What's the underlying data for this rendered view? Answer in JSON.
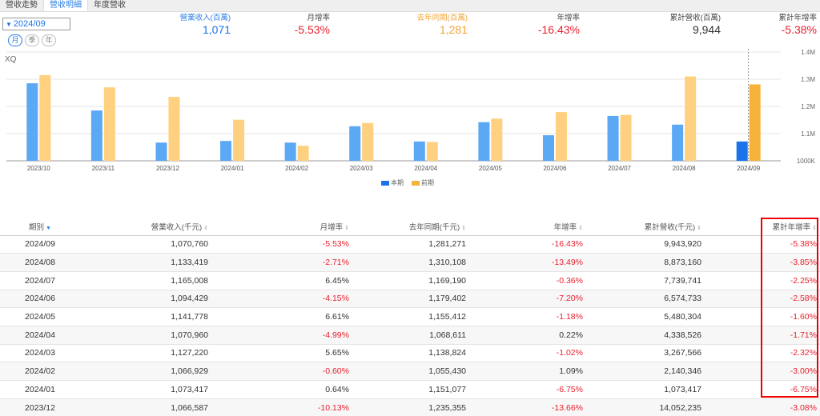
{
  "tabs": [
    {
      "label": "營收走勢"
    },
    {
      "label": "營收明細"
    },
    {
      "label": "年度營收"
    }
  ],
  "period_select": {
    "value": "2024/09"
  },
  "freq_buttons": [
    {
      "label": "月"
    },
    {
      "label": "季"
    },
    {
      "label": "年"
    }
  ],
  "summary": {
    "revenue": {
      "label": "營業收入(百萬)",
      "value": "1,071"
    },
    "mom": {
      "label": "月增率",
      "value": "-5.53%"
    },
    "last_year": {
      "label": "去年同期(百萬)",
      "value": "1,281"
    },
    "yoy": {
      "label": "年增率",
      "value": "-16.43%"
    },
    "cumulative": {
      "label": "累計營收(百萬)",
      "value": "9,944"
    },
    "cum_yoy": {
      "label": "累計年增率",
      "value": "-5.38%"
    }
  },
  "chart_logo": "XQ",
  "colors": {
    "current": "#5ba8f5",
    "current_highlight": "#1a73e8",
    "previous": "#ffd080",
    "previous_highlight": "#f7b23b",
    "negative": "#e8202e",
    "accent": "#2b7de9"
  },
  "chart_data": {
    "type": "bar",
    "categories": [
      "2023/10",
      "2023/11",
      "2023/12",
      "2024/01",
      "2024/02",
      "2024/03",
      "2024/04",
      "2024/05",
      "2024/06",
      "2024/07",
      "2024/08",
      "2024/09"
    ],
    "series": [
      {
        "name": "本期",
        "values": [
          1285,
          1185,
          1067,
          1073,
          1067,
          1127,
          1071,
          1142,
          1094,
          1165,
          1133,
          1071
        ]
      },
      {
        "name": "前期",
        "values": [
          1315,
          1270,
          1235,
          1151,
          1055,
          1139,
          1069,
          1155,
          1179,
          1169,
          1310,
          1281
        ]
      }
    ],
    "yticks": [
      "1000K",
      "1.1M",
      "1.2M",
      "1.3M",
      "1.4M"
    ],
    "ylim": [
      1000,
      1400
    ],
    "y_axis_position": "right",
    "legend_position": "bottom-center",
    "grid": true
  },
  "table": {
    "headers": [
      "期別",
      "營業收入(千元)",
      "月增率",
      "去年同期(千元)",
      "年增率",
      "累計營收(千元)",
      "累計年增率"
    ],
    "rows": [
      [
        "2024/09",
        "1,070,760",
        "-5.53%",
        "1,281,271",
        "-16.43%",
        "9,943,920",
        "-5.38%"
      ],
      [
        "2024/08",
        "1,133,419",
        "-2.71%",
        "1,310,108",
        "-13.49%",
        "8,873,160",
        "-3.85%"
      ],
      [
        "2024/07",
        "1,165,008",
        "6.45%",
        "1,169,190",
        "-0.36%",
        "7,739,741",
        "-2.25%"
      ],
      [
        "2024/06",
        "1,094,429",
        "-4.15%",
        "1,179,402",
        "-7.20%",
        "6,574,733",
        "-2.58%"
      ],
      [
        "2024/05",
        "1,141,778",
        "6.61%",
        "1,155,412",
        "-1.18%",
        "5,480,304",
        "-1.60%"
      ],
      [
        "2024/04",
        "1,070,960",
        "-4.99%",
        "1,068,611",
        "0.22%",
        "4,338,526",
        "-1.71%"
      ],
      [
        "2024/03",
        "1,127,220",
        "5.65%",
        "1,138,824",
        "-1.02%",
        "3,267,566",
        "-2.32%"
      ],
      [
        "2024/02",
        "1,066,929",
        "-0.60%",
        "1,055,430",
        "1.09%",
        "2,140,346",
        "-3.00%"
      ],
      [
        "2024/01",
        "1,073,417",
        "0.64%",
        "1,151,077",
        "-6.75%",
        "1,073,417",
        "-6.75%"
      ],
      [
        "2023/12",
        "1,066,587",
        "-10.13%",
        "1,235,355",
        "-13.66%",
        "14,052,235",
        "-3.08%"
      ]
    ]
  }
}
